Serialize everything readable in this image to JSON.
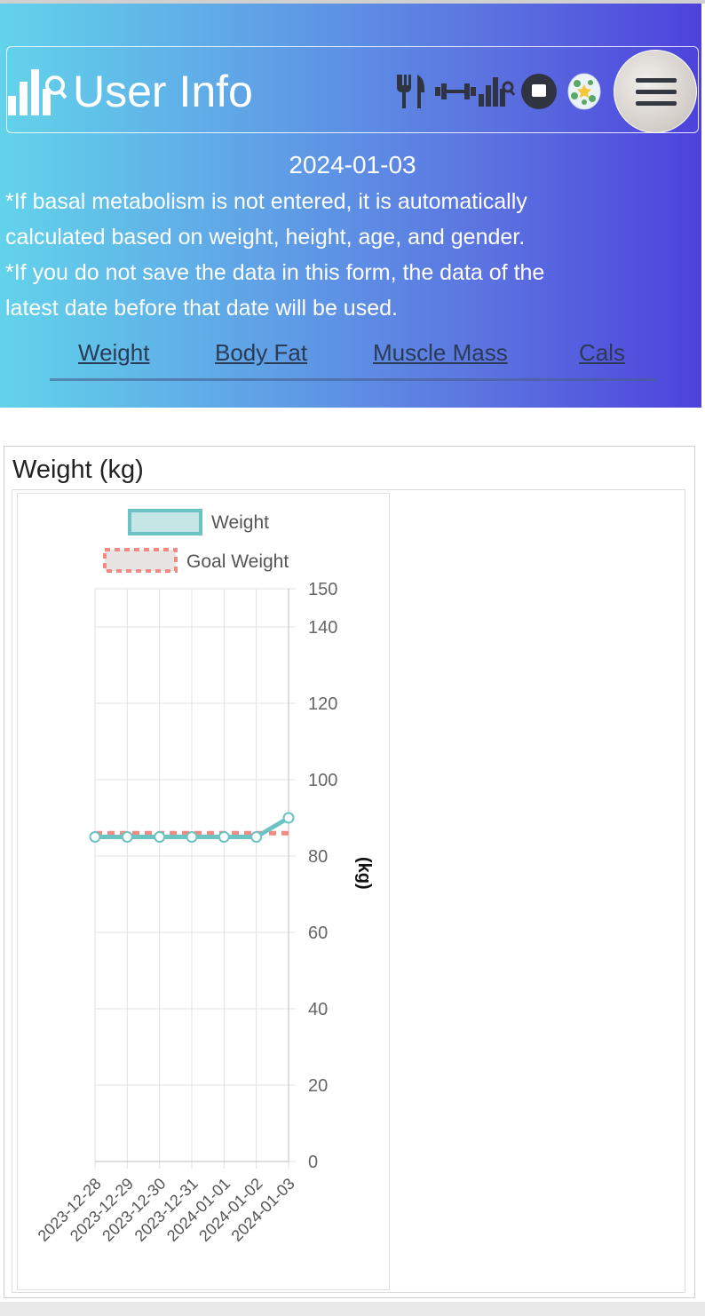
{
  "header": {
    "title": "User Info",
    "date": "2024-01-03",
    "notes": [
      "*If basal metabolism is not entered, it is automatically",
      "calculated based on weight, height, age, and gender.",
      "*If you do not save the data in this form, the data of the",
      "latest date before that date will be used."
    ],
    "nav_icons": [
      "fork-knife-icon",
      "dumbbell-icon",
      "chart-search-icon",
      "stop-icon",
      "globe-icon",
      "menu-icon"
    ]
  },
  "tabs": [
    {
      "label": "Weight"
    },
    {
      "label": "Body Fat"
    },
    {
      "label": "Muscle Mass"
    },
    {
      "label": "Cals"
    }
  ],
  "card": {
    "title": "Weight (kg)"
  },
  "chart_data": {
    "type": "line",
    "x": [
      "2023-12-28",
      "2023-12-29",
      "2023-12-30",
      "2023-12-31",
      "2024-01-01",
      "2024-01-02",
      "2024-01-03"
    ],
    "series": [
      {
        "name": "Weight",
        "values": [
          85,
          85,
          85,
          85,
          85,
          85,
          90
        ],
        "color": "#6cc3c3",
        "fill": "#c6e6e6"
      },
      {
        "name": "Goal Weight",
        "values": [
          86,
          86,
          86,
          86,
          86,
          86,
          86
        ],
        "color": "#f08a82",
        "fill": "#e8e4e4",
        "dashed": true
      }
    ],
    "yticks": [
      0,
      20,
      40,
      60,
      80,
      100,
      120,
      140,
      150
    ],
    "ylim": [
      0,
      150
    ],
    "ylabel": "(kg)",
    "y_axis_position": "right",
    "legend_position": "top",
    "grid": true
  }
}
